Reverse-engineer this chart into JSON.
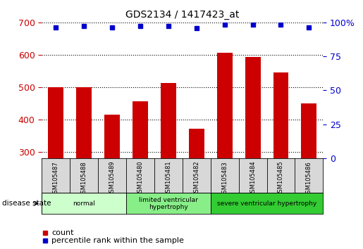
{
  "title": "GDS2134 / 1417423_at",
  "categories": [
    "GSM105487",
    "GSM105488",
    "GSM105489",
    "GSM105480",
    "GSM105481",
    "GSM105482",
    "GSM105483",
    "GSM105484",
    "GSM105485",
    "GSM105486"
  ],
  "bar_values": [
    500,
    500,
    415,
    455,
    512,
    370,
    605,
    592,
    545,
    450
  ],
  "percentile_values": [
    96.5,
    97.5,
    96.5,
    97.5,
    97.5,
    96,
    98.5,
    98.5,
    98.5,
    96.5
  ],
  "ylim_left": [
    280,
    700
  ],
  "ylim_right": [
    0,
    100
  ],
  "bar_color": "#cc0000",
  "dot_color": "#0000cc",
  "bg_color": "#ffffff",
  "disease_groups": [
    {
      "label": "normal",
      "start": 0,
      "end": 3,
      "color": "#ccffcc"
    },
    {
      "label": "limited ventricular\nhypertrophy",
      "start": 3,
      "end": 6,
      "color": "#88ee88"
    },
    {
      "label": "severe ventricular hypertrophy",
      "start": 6,
      "end": 10,
      "color": "#33cc33"
    }
  ],
  "yticks_left": [
    300,
    400,
    500,
    600,
    700
  ],
  "yticks_right": [
    0,
    25,
    50,
    75,
    100
  ],
  "left_axis_color": "#cc0000",
  "right_axis_color": "#0000cc",
  "legend_items": [
    "count",
    "percentile rank within the sample"
  ],
  "disease_state_label": "disease state",
  "tick_area_bg": "#d8d8d8"
}
